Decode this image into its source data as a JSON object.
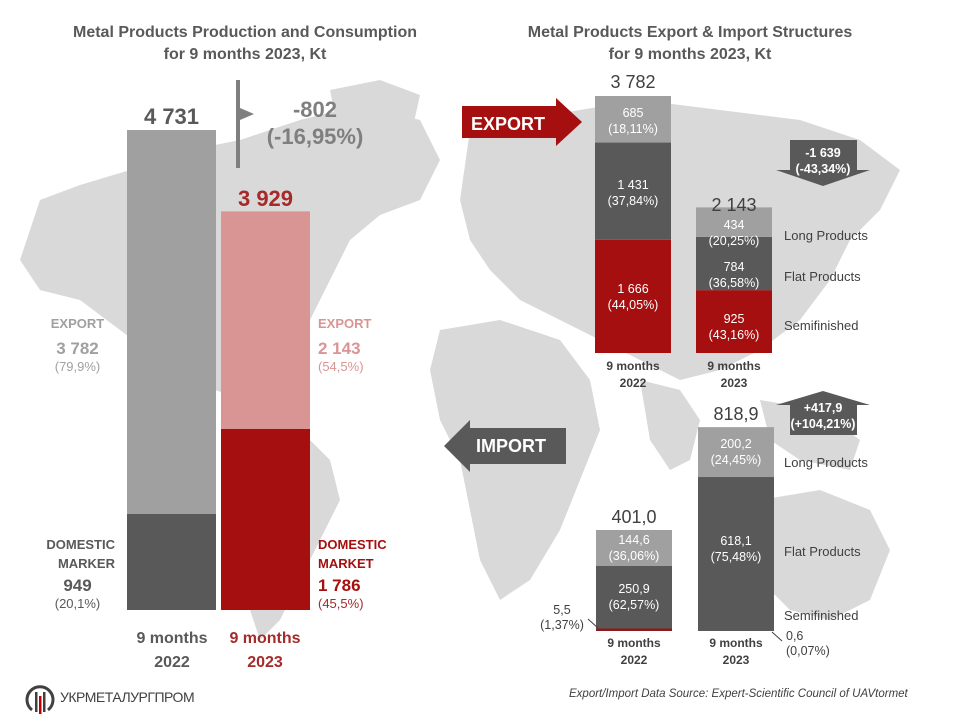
{
  "colors": {
    "map": "#d9d9d9",
    "grey_light": "#a0a0a0",
    "grey_dark": "#595959",
    "red_dark": "#a50f0f",
    "red_light": "#d99594",
    "text_dark": "#595959",
    "text_red": "#a52a2a"
  },
  "footer": {
    "logo_text": "УКРМЕТАЛУРГПРОМ",
    "source": "Export/Import Data Source: Expert-Scientific Council of UAVtormet"
  },
  "chart_data": [
    {
      "type": "bar",
      "stacked": true,
      "title": "Metal Products Production and Consumption",
      "subtitle": "for 9 months 2023, Kt",
      "categories": [
        "9 months 2022",
        "9 months 2023"
      ],
      "category_lines": [
        [
          "9 months",
          "2022"
        ],
        [
          "9 months",
          "2023"
        ]
      ],
      "totals": [
        "4 731",
        "3 929"
      ],
      "total_values": [
        4731,
        3929
      ],
      "series": [
        {
          "name": "DOMESTIC MARKET",
          "labels": [
            "DOMESTIC\nMARKER",
            "DOMESTIC\nMARKET"
          ],
          "values": [
            949,
            1786
          ],
          "value_labels": [
            "949",
            "1 786"
          ],
          "pct_labels": [
            "(20,1%)",
            "(45,5%)"
          ]
        },
        {
          "name": "EXPORT",
          "labels": [
            "EXPORT",
            "EXPORT"
          ],
          "values": [
            3782,
            2143
          ],
          "value_labels": [
            "3 782",
            "2 143"
          ],
          "pct_labels": [
            "(79,9%)",
            "(54,5%)"
          ]
        }
      ],
      "change": {
        "value": "-802",
        "pct": "(-16,95%)"
      },
      "ylim": [
        0,
        4731
      ]
    },
    {
      "type": "bar",
      "stacked": true,
      "title": "Metal Products Export & Import Structures",
      "subtitle": "for 9 months 2023, Kt",
      "groups": [
        {
          "name": "EXPORT",
          "categories": [
            "9 months 2022",
            "9 months 2023"
          ],
          "category_lines": [
            [
              "9 months",
              "2022"
            ],
            [
              "9 months",
              "2023"
            ]
          ],
          "totals": [
            "3 782",
            "2 143"
          ],
          "total_values": [
            3782,
            2143
          ],
          "series": [
            {
              "name": "Semifinished",
              "values": [
                1666,
                925
              ],
              "value_labels": [
                "1 666",
                "925"
              ],
              "pct_labels": [
                "(44,05%)",
                "(43,16%)"
              ]
            },
            {
              "name": "Flat Products",
              "values": [
                1431,
                784
              ],
              "value_labels": [
                "1 431",
                "784"
              ],
              "pct_labels": [
                "(37,84%)",
                "(36,58%)"
              ]
            },
            {
              "name": "Long Products",
              "values": [
                685,
                434
              ],
              "value_labels": [
                "685",
                "434"
              ],
              "pct_labels": [
                "(18,11%)",
                "(20,25%)"
              ]
            }
          ],
          "change": {
            "value": "-1 639",
            "pct": "(-43,34%)",
            "direction": "down"
          }
        },
        {
          "name": "IMPORT",
          "categories": [
            "9 months 2022",
            "9 months 2023"
          ],
          "category_lines": [
            [
              "9 months",
              "2022"
            ],
            [
              "9 months",
              "2023"
            ]
          ],
          "totals": [
            "401,0",
            "818,9"
          ],
          "total_values": [
            401.0,
            818.9
          ],
          "series": [
            {
              "name": "Semifinished",
              "values": [
                5.5,
                0.6
              ],
              "value_labels": [
                "5,5",
                "0,6"
              ],
              "pct_labels": [
                "(1,37%)",
                "(0,07%)"
              ]
            },
            {
              "name": "Flat Products",
              "values": [
                250.9,
                618.1
              ],
              "value_labels": [
                "250,9",
                "618,1"
              ],
              "pct_labels": [
                "(62,57%)",
                "(75,48%)"
              ]
            },
            {
              "name": "Long Products",
              "values": [
                144.6,
                200.2
              ],
              "value_labels": [
                "144,6",
                "200,2"
              ],
              "pct_labels": [
                "(36,06%)",
                "(24,45%)"
              ]
            }
          ],
          "change": {
            "value": "+417,9",
            "pct": "(+104,21%)",
            "direction": "up"
          }
        }
      ],
      "legend": [
        "Long Products",
        "Flat Products",
        "Semifinished"
      ]
    }
  ]
}
